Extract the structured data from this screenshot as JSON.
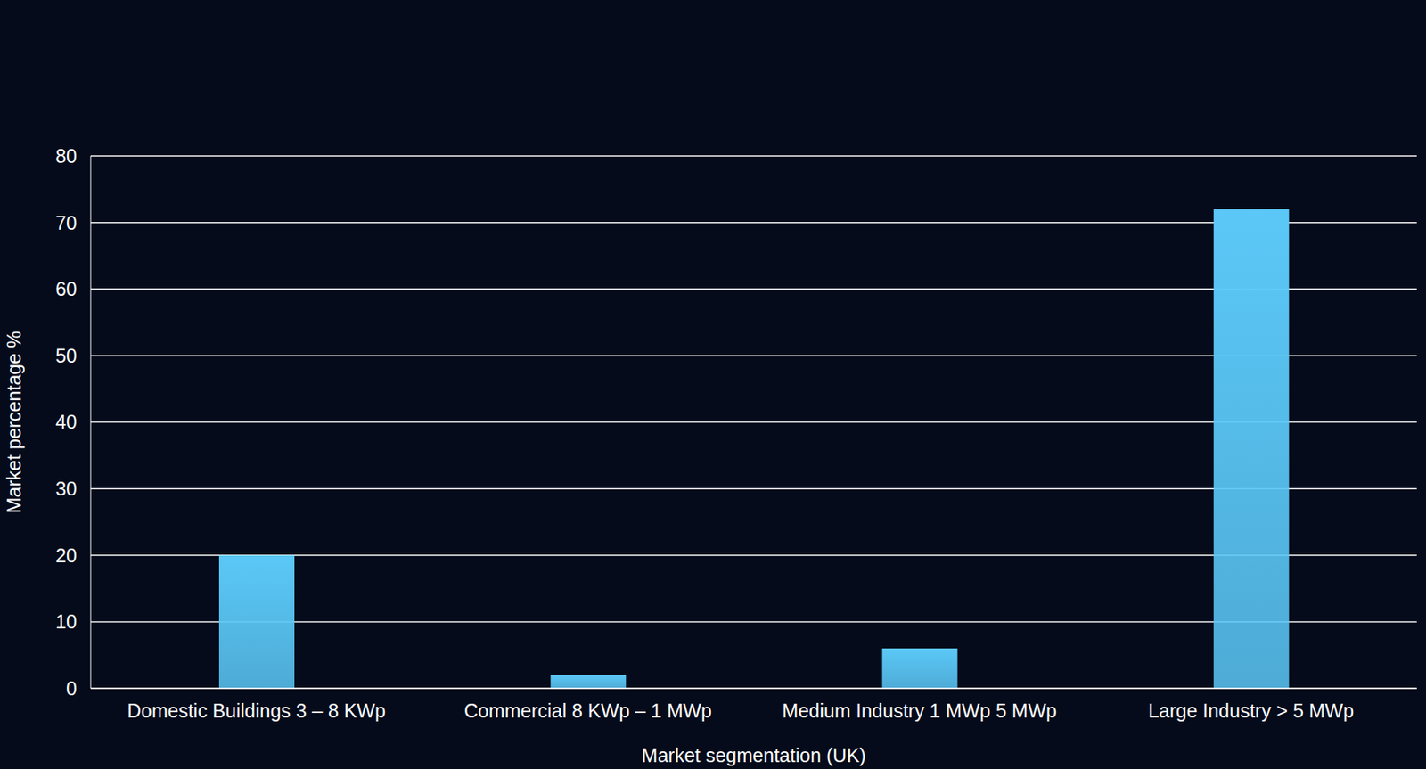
{
  "chart_data": {
    "type": "bar",
    "categories": [
      "Domestic Buildings 3 – 8 KWp",
      "Commercial 8 KWp – 1 MWp",
      "Medium Industry 1 MWp 5 MWp",
      "Large Industry > 5 MWp"
    ],
    "values": [
      20,
      2,
      6,
      72
    ],
    "color": "#5bc8f7",
    "x_label": "Market segmentation (UK)",
    "y_label": "Market percentage %",
    "ylim": [
      0,
      80
    ],
    "yticks": [
      0,
      10,
      20,
      30,
      40,
      50,
      60,
      70,
      80
    ],
    "grid": true
  }
}
